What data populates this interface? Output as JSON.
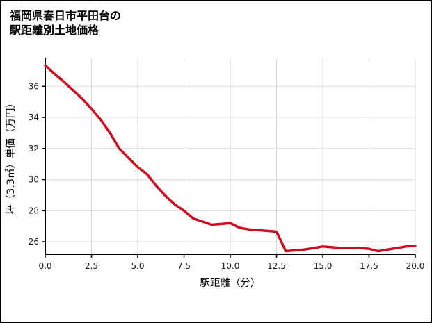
{
  "header": {
    "title_line1": "福岡県春日市平田台の",
    "title_line2": "駅距離別土地価格"
  },
  "chart_data": {
    "type": "line",
    "title": "福岡県春日市平田台の駅距離別土地価格",
    "xlabel": "駅距離（分）",
    "ylabel": "坪（3.3㎡）単価（万円）",
    "xlim": [
      0,
      20
    ],
    "ylim": [
      25.2,
      37.8
    ],
    "xticks": [
      0.0,
      2.5,
      5.0,
      7.5,
      10.0,
      12.5,
      15.0,
      17.5,
      20.0
    ],
    "xtick_labels": [
      "0.0",
      "2.5",
      "5.0",
      "7.5",
      "10.0",
      "12.5",
      "15.0",
      "17.5",
      "20.0"
    ],
    "yticks": [
      26,
      28,
      30,
      32,
      34,
      36
    ],
    "ytick_labels": [
      "26",
      "28",
      "30",
      "32",
      "34",
      "36"
    ],
    "grid": true,
    "legend": false,
    "line_color": "#cf0a1e",
    "grid_color": "#d9d9d9",
    "axis_color": "#000000",
    "series": [
      {
        "name": "坪単価",
        "x": [
          0,
          0.5,
          1,
          1.5,
          2,
          2.5,
          3,
          3.5,
          4,
          4.5,
          5,
          5.5,
          6,
          6.5,
          7,
          7.5,
          8,
          8.5,
          9,
          9.5,
          10,
          10.5,
          11,
          11.5,
          12,
          12.5,
          13,
          13.5,
          14,
          14.5,
          15,
          15.5,
          16,
          16.5,
          17,
          17.5,
          18,
          18.5,
          19,
          19.5,
          20
        ],
        "y": [
          37.35,
          36.8,
          36.3,
          35.75,
          35.2,
          34.55,
          33.85,
          33.0,
          32.0,
          31.4,
          30.8,
          30.35,
          29.6,
          28.95,
          28.4,
          28.0,
          27.5,
          27.3,
          27.1,
          27.15,
          27.2,
          26.9,
          26.8,
          26.75,
          26.7,
          26.65,
          25.4,
          25.45,
          25.5,
          25.6,
          25.7,
          25.65,
          25.6,
          25.6,
          25.6,
          25.55,
          25.4,
          25.5,
          25.6,
          25.7,
          25.75
        ]
      }
    ]
  }
}
